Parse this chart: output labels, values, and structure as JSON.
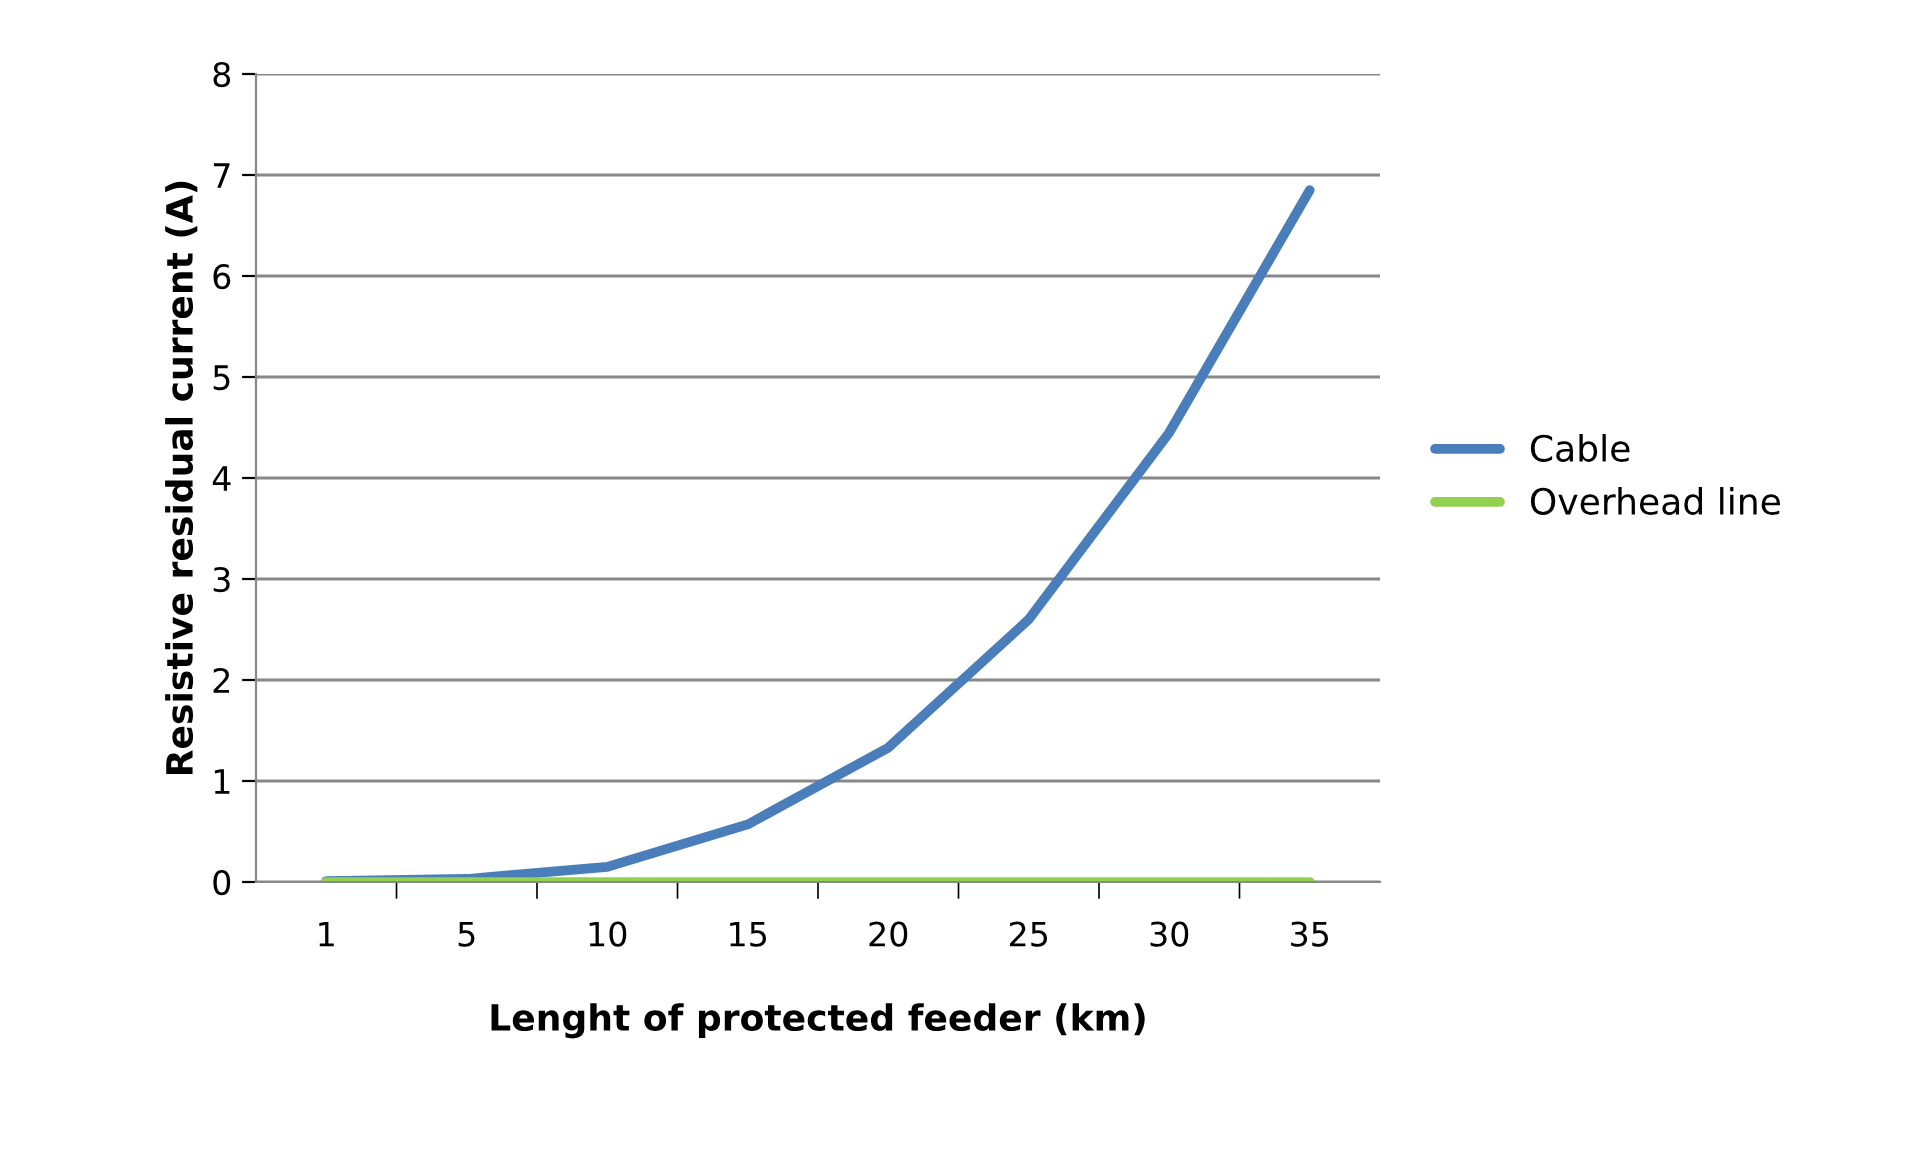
{
  "chart_data": {
    "type": "line",
    "xlabel": "Lenght of protected feeder (km)",
    "ylabel": "Resistive residual current (A)",
    "categories": [
      "1",
      "5",
      "10",
      "15",
      "20",
      "25",
      "30",
      "35"
    ],
    "series": [
      {
        "name": "Cable",
        "color": "#4a7ebb",
        "values": [
          0.01,
          0.03,
          0.15,
          0.57,
          1.33,
          2.6,
          4.45,
          6.85
        ]
      },
      {
        "name": "Overhead line",
        "color": "#92d050",
        "values": [
          0,
          0,
          0,
          0,
          0,
          0,
          0,
          0
        ]
      }
    ],
    "ylim": [
      0,
      8
    ],
    "yticks": [
      0,
      1,
      2,
      3,
      4,
      5,
      6,
      7,
      8
    ],
    "grid": "y",
    "legend": "right",
    "marker": "none",
    "line_style": "solid"
  }
}
